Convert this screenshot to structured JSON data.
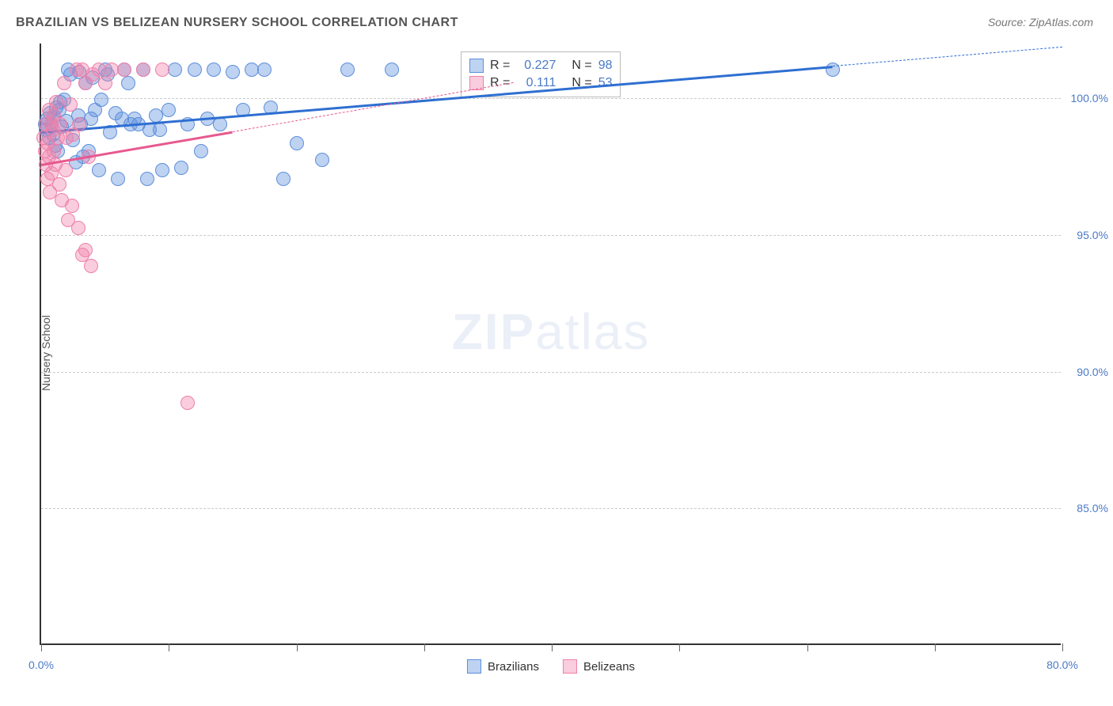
{
  "title": "BRAZILIAN VS BELIZEAN NURSERY SCHOOL CORRELATION CHART",
  "source_label": "Source: ZipAtlas.com",
  "y_axis_label": "Nursery School",
  "watermark": {
    "bold": "ZIP",
    "light": "atlas"
  },
  "chart": {
    "type": "scatter",
    "xlim": [
      0,
      80
    ],
    "ylim": [
      80,
      102
    ],
    "x_ticks": [
      0,
      10,
      20,
      30,
      40,
      50,
      60,
      70,
      80
    ],
    "x_tick_labels_shown": {
      "0": "0.0%",
      "80": "80.0%"
    },
    "y_gridlines": [
      85,
      90,
      95,
      100
    ],
    "y_tick_labels": {
      "85": "85.0%",
      "90": "90.0%",
      "95": "95.0%",
      "100": "100.0%"
    },
    "background_color": "#ffffff",
    "grid_color": "#cccccc",
    "axis_color": "#333333",
    "point_radius": 9,
    "point_opacity": 0.45,
    "series": [
      {
        "name": "Brazilians",
        "color_fill": "rgba(93,143,219,0.40)",
        "color_stroke": "#5d8fdb",
        "trend_color": "#2e6fd1",
        "trend_width": 2.5,
        "R": "0.227",
        "N": "98",
        "trend": {
          "x1": 0,
          "y1": 98.8,
          "x2": 62,
          "y2": 101.2
        },
        "trend_dash": {
          "x1": 62,
          "y1": 101.2,
          "x2": 80,
          "y2": 101.9
        },
        "points": [
          [
            0.3,
            99.0
          ],
          [
            0.4,
            98.8
          ],
          [
            0.5,
            99.2
          ],
          [
            0.6,
            98.5
          ],
          [
            0.7,
            99.4
          ],
          [
            0.8,
            99.0
          ],
          [
            0.9,
            98.6
          ],
          [
            1.0,
            99.3
          ],
          [
            1.1,
            98.2
          ],
          [
            1.2,
            99.6
          ],
          [
            1.3,
            98.0
          ],
          [
            1.4,
            99.5
          ],
          [
            1.5,
            99.8
          ],
          [
            1.6,
            98.9
          ],
          [
            1.8,
            99.9
          ],
          [
            2.0,
            99.1
          ],
          [
            2.1,
            101.0
          ],
          [
            2.3,
            100.8
          ],
          [
            2.5,
            98.4
          ],
          [
            2.7,
            97.6
          ],
          [
            2.9,
            99.3
          ],
          [
            3.0,
            100.9
          ],
          [
            3.1,
            99.0
          ],
          [
            3.3,
            97.8
          ],
          [
            3.5,
            100.5
          ],
          [
            3.7,
            98.0
          ],
          [
            3.9,
            99.2
          ],
          [
            4.0,
            100.7
          ],
          [
            4.2,
            99.5
          ],
          [
            4.5,
            97.3
          ],
          [
            4.7,
            99.9
          ],
          [
            5.0,
            101.0
          ],
          [
            5.2,
            100.8
          ],
          [
            5.4,
            98.7
          ],
          [
            5.8,
            99.4
          ],
          [
            6.0,
            97.0
          ],
          [
            6.3,
            99.2
          ],
          [
            6.5,
            101.0
          ],
          [
            6.8,
            100.5
          ],
          [
            7.0,
            99.0
          ],
          [
            7.3,
            99.2
          ],
          [
            7.6,
            99.0
          ],
          [
            8.0,
            101.0
          ],
          [
            8.3,
            97.0
          ],
          [
            8.5,
            98.8
          ],
          [
            9.0,
            99.3
          ],
          [
            9.3,
            98.8
          ],
          [
            9.5,
            97.3
          ],
          [
            10.0,
            99.5
          ],
          [
            10.5,
            101.0
          ],
          [
            11.0,
            97.4
          ],
          [
            11.5,
            99.0
          ],
          [
            12.0,
            101.0
          ],
          [
            12.5,
            98.0
          ],
          [
            13.0,
            99.2
          ],
          [
            13.5,
            101.0
          ],
          [
            14.0,
            99.0
          ],
          [
            15.0,
            100.9
          ],
          [
            15.8,
            99.5
          ],
          [
            16.5,
            101.0
          ],
          [
            17.5,
            101.0
          ],
          [
            18.0,
            99.6
          ],
          [
            19.0,
            97.0
          ],
          [
            20.0,
            98.3
          ],
          [
            22.0,
            97.7
          ],
          [
            24.0,
            101.0
          ],
          [
            27.5,
            101.0
          ],
          [
            62.0,
            101.0
          ]
        ]
      },
      {
        "name": "Belizeans",
        "color_fill": "rgba(240,130,170,0.40)",
        "color_stroke": "#ef7fa9",
        "trend_color": "#e8588f",
        "trend_width": 2.5,
        "R": "0.111",
        "N": "53",
        "trend": {
          "x1": 0,
          "y1": 97.6,
          "x2": 15,
          "y2": 98.8
        },
        "trend_dash": {
          "x1": 15,
          "y1": 98.8,
          "x2": 37,
          "y2": 100.6
        },
        "points": [
          [
            0.2,
            98.5
          ],
          [
            0.3,
            98.0
          ],
          [
            0.4,
            97.5
          ],
          [
            0.4,
            99.0
          ],
          [
            0.5,
            98.3
          ],
          [
            0.5,
            97.0
          ],
          [
            0.6,
            99.5
          ],
          [
            0.6,
            97.8
          ],
          [
            0.7,
            96.5
          ],
          [
            0.8,
            99.0
          ],
          [
            0.8,
            97.2
          ],
          [
            0.9,
            98.8
          ],
          [
            1.0,
            98.0
          ],
          [
            1.0,
            99.3
          ],
          [
            1.1,
            97.5
          ],
          [
            1.2,
            99.8
          ],
          [
            1.3,
            98.5
          ],
          [
            1.4,
            96.8
          ],
          [
            1.5,
            99.0
          ],
          [
            1.6,
            96.2
          ],
          [
            1.8,
            100.5
          ],
          [
            1.9,
            97.3
          ],
          [
            2.0,
            98.5
          ],
          [
            2.1,
            95.5
          ],
          [
            2.3,
            99.7
          ],
          [
            2.4,
            96.0
          ],
          [
            2.5,
            98.6
          ],
          [
            2.8,
            101.0
          ],
          [
            2.9,
            95.2
          ],
          [
            3.0,
            99.0
          ],
          [
            3.2,
            101.0
          ],
          [
            3.2,
            94.2
          ],
          [
            3.5,
            100.5
          ],
          [
            3.5,
            94.4
          ],
          [
            3.7,
            97.8
          ],
          [
            3.9,
            93.8
          ],
          [
            4.0,
            100.8
          ],
          [
            4.5,
            101.0
          ],
          [
            5.0,
            100.5
          ],
          [
            5.5,
            101.0
          ],
          [
            6.5,
            101.0
          ],
          [
            8.0,
            101.0
          ],
          [
            9.5,
            101.0
          ],
          [
            11.5,
            88.8
          ]
        ]
      }
    ]
  },
  "legend_stats": {
    "rows": [
      {
        "swatch_fill": "rgba(93,143,219,0.40)",
        "swatch_stroke": "#5d8fdb",
        "r_label": "R =",
        "r_val": "0.227",
        "n_label": "N =",
        "n_val": "98"
      },
      {
        "swatch_fill": "rgba(240,130,170,0.40)",
        "swatch_stroke": "#ef7fa9",
        "r_label": "R =",
        "r_val": "0.111",
        "n_label": "N =",
        "n_val": "53"
      }
    ]
  },
  "bottom_legend": [
    {
      "swatch_fill": "rgba(93,143,219,0.40)",
      "swatch_stroke": "#5d8fdb",
      "label": "Brazilians"
    },
    {
      "swatch_fill": "rgba(240,130,170,0.40)",
      "swatch_stroke": "#ef7fa9",
      "label": "Belizeans"
    }
  ]
}
